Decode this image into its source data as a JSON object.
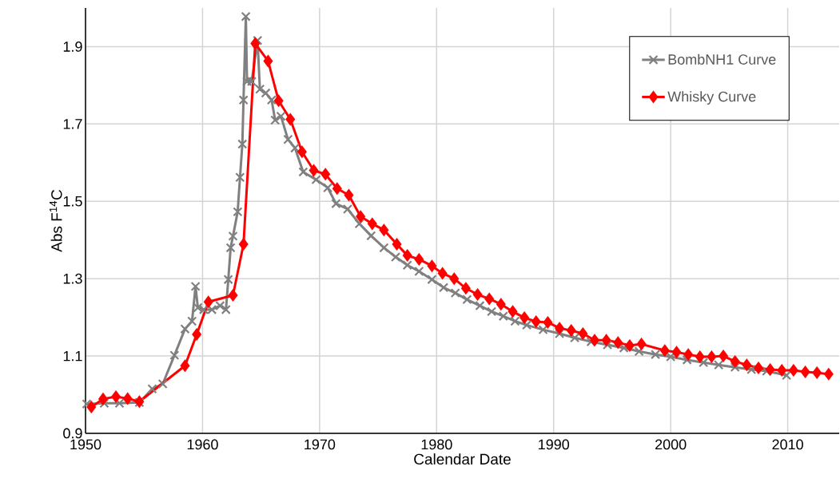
{
  "chart_data": {
    "type": "line",
    "xlabel": "Calendar Date",
    "ylabel": "Abs F$^{14}$C",
    "xlim": [
      1950,
      2014.4
    ],
    "ylim": [
      0.9,
      2.0
    ],
    "xticks": [
      1950,
      1960,
      1970,
      1980,
      1990,
      2000,
      2010
    ],
    "yticks": [
      0.9,
      1.1,
      1.3,
      1.5,
      1.7,
      1.9
    ],
    "grid": true,
    "legend": "top right",
    "series": [
      {
        "name": "BombNH1 Curve",
        "color": "#808080",
        "marker": "cross",
        "x": [
          1950.1,
          1951.6,
          1952.9,
          1954.6,
          1955.7,
          1956.6,
          1957.6,
          1958.5,
          1959.1,
          1959.4,
          1959.6,
          1960.1,
          1960.8,
          1961.5,
          1962.0,
          1962.2,
          1962.4,
          1962.6,
          1963.0,
          1963.2,
          1963.4,
          1963.5,
          1963.7,
          1963.8,
          1964.2,
          1964.7,
          1964.9,
          1965.4,
          1965.9,
          1966.2,
          1966.7,
          1967.3,
          1967.9,
          1968.6,
          1969.7,
          1970.7,
          1971.4,
          1972.4,
          1973.4,
          1974.4,
          1975.5,
          1976.5,
          1977.5,
          1978.5,
          1979.6,
          1980.6,
          1981.6,
          1982.6,
          1983.7,
          1984.7,
          1985.7,
          1986.7,
          1987.7,
          1989.1,
          1990.5,
          1991.8,
          1993.2,
          1994.6,
          1996.0,
          1997.3,
          1998.7,
          2000.0,
          2001.4,
          2002.8,
          2004.1,
          2005.5,
          2006.9,
          2008.2,
          2009.9
        ],
        "values": [
          0.976,
          0.978,
          0.978,
          0.98,
          1.015,
          1.028,
          1.102,
          1.17,
          1.19,
          1.28,
          1.225,
          1.22,
          1.22,
          1.23,
          1.22,
          1.298,
          1.38,
          1.41,
          1.473,
          1.562,
          1.648,
          1.762,
          1.978,
          1.81,
          1.81,
          1.916,
          1.79,
          1.78,
          1.762,
          1.71,
          1.72,
          1.66,
          1.638,
          1.576,
          1.556,
          1.535,
          1.494,
          1.48,
          1.442,
          1.411,
          1.38,
          1.356,
          1.335,
          1.319,
          1.298,
          1.277,
          1.263,
          1.246,
          1.23,
          1.215,
          1.203,
          1.19,
          1.18,
          1.168,
          1.158,
          1.147,
          1.137,
          1.129,
          1.121,
          1.112,
          1.104,
          1.098,
          1.09,
          1.083,
          1.077,
          1.071,
          1.065,
          1.061,
          1.05
        ]
      },
      {
        "name": "Whisky Curve",
        "color": "#ff0000",
        "marker": "diamond",
        "x": [
          1950.5,
          1951.5,
          1952.6,
          1953.6,
          1954.6,
          1958.5,
          1959.5,
          1960.5,
          1962.6,
          1963.5,
          1964.5,
          1965.6,
          1966.5,
          1967.5,
          1968.5,
          1969.5,
          1970.5,
          1971.5,
          1972.5,
          1973.5,
          1974.5,
          1975.5,
          1976.6,
          1977.5,
          1978.5,
          1979.6,
          1980.5,
          1981.5,
          1982.5,
          1983.5,
          1984.5,
          1985.5,
          1986.5,
          1987.5,
          1988.5,
          1989.5,
          1990.5,
          1991.5,
          1992.5,
          1993.5,
          1994.5,
          1995.5,
          1996.5,
          1997.5,
          1999.5,
          2000.5,
          2001.5,
          2002.5,
          2003.5,
          2004.5,
          2005.5,
          2006.5,
          2007.5,
          2008.5,
          2009.5,
          2010.5,
          2011.5,
          2012.5,
          2013.5
        ],
        "values": [
          0.968,
          0.989,
          0.995,
          0.99,
          0.982,
          1.075,
          1.156,
          1.24,
          1.257,
          1.389,
          1.908,
          1.863,
          1.76,
          1.712,
          1.628,
          1.58,
          1.57,
          1.533,
          1.516,
          1.461,
          1.442,
          1.426,
          1.389,
          1.36,
          1.35,
          1.333,
          1.314,
          1.3,
          1.275,
          1.259,
          1.248,
          1.234,
          1.215,
          1.199,
          1.189,
          1.187,
          1.172,
          1.166,
          1.158,
          1.141,
          1.141,
          1.135,
          1.127,
          1.131,
          1.114,
          1.11,
          1.104,
          1.098,
          1.098,
          1.1,
          1.086,
          1.077,
          1.069,
          1.065,
          1.063,
          1.063,
          1.059,
          1.057,
          1.053
        ]
      }
    ]
  }
}
